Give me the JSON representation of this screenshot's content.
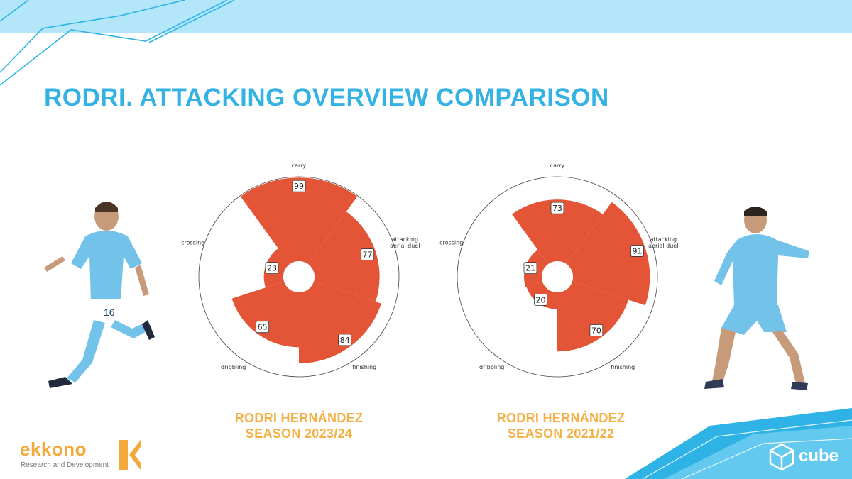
{
  "page": {
    "title": "RODRI. ATTACKING OVERVIEW COMPARISON",
    "accent_color": "#34b2e4",
    "caption_color": "#f4b045"
  },
  "chart_data": [
    {
      "type": "polar-bar",
      "player": "RODRI HERNÁNDEZ",
      "season": "SEASON 2023/24",
      "axis_labels": [
        "carry",
        "attacking aerial duel",
        "finishing",
        "dribbling",
        "crossing"
      ],
      "categories": [
        "carry",
        "attacking aerial duel",
        "finishing",
        "dribbling",
        "crossing"
      ],
      "values": [
        99,
        77,
        84,
        65,
        23
      ],
      "value_labels": [
        "99",
        "77",
        "84",
        "65",
        "23"
      ],
      "range": [
        0,
        100
      ],
      "bar_color": "#e35536"
    },
    {
      "type": "polar-bar",
      "player": "RODRI HERNÁNDEZ",
      "season": "SEASON 2021/22",
      "axis_labels": [
        "carry",
        "attacking aerial duel",
        "finishing",
        "dribbling",
        "crossing"
      ],
      "categories": [
        "carry",
        "attacking aerial duel",
        "finishing",
        "dribbling",
        "crossing"
      ],
      "values": [
        73,
        91,
        70,
        20,
        21
      ],
      "value_labels": [
        "73",
        "91",
        "70",
        "20",
        "21"
      ],
      "range": [
        0,
        100
      ],
      "bar_color": "#e35536"
    }
  ],
  "logos": {
    "left_brand": "ekkono",
    "left_tagline": "Research and Development",
    "right_brand": "cube"
  },
  "icons": {
    "left_player": "player-photo-icon",
    "right_player": "player-photo-icon"
  }
}
